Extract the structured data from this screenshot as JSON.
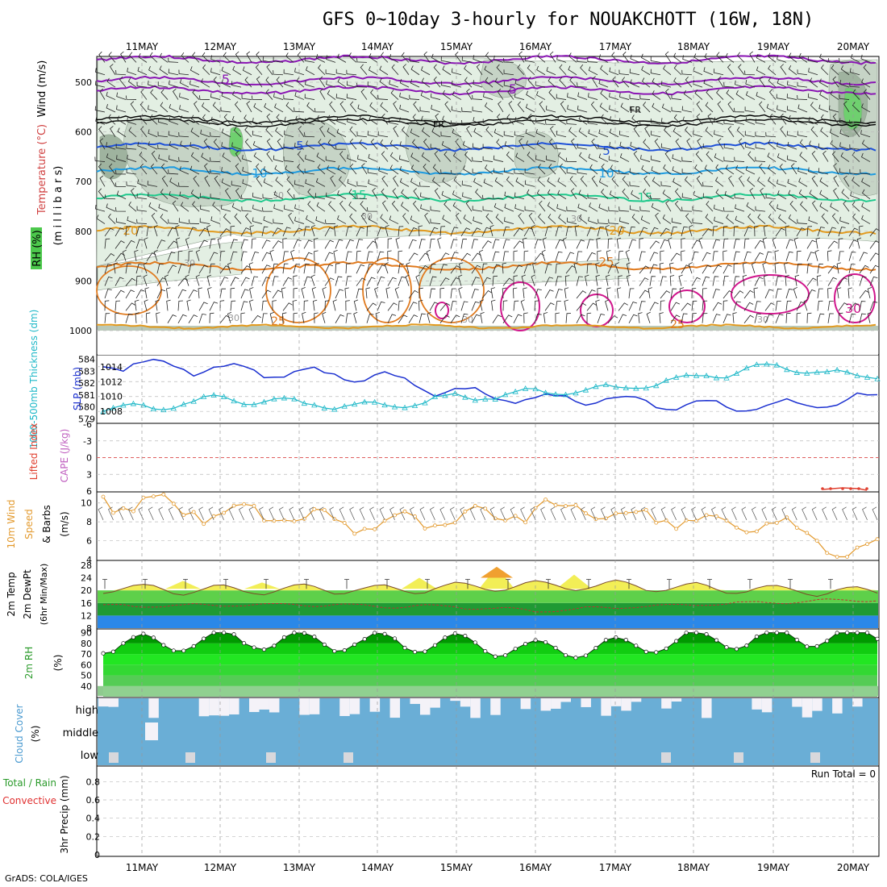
{
  "header": {
    "title": "GFS 0~10day 3-hourly for NOUAKCHOTT (16W, 18N)",
    "credit": "GrADS: COLA/IGES"
  },
  "dates": [
    "11MAY",
    "12MAY",
    "13MAY",
    "14MAY",
    "15MAY",
    "16MAY",
    "17MAY",
    "18MAY",
    "19MAY",
    "20MAY"
  ],
  "colors": {
    "slp": "#1a2fd0",
    "thick": "#1fb8c8",
    "wind10": "#e39a2e",
    "rh": "#22cc22",
    "purple": "#8a16b4",
    "blue5": "#1e50d8",
    "cyan10": "#1e9be0",
    "green15": "#1ec98c",
    "orange20": "#e29a1e",
    "orange25": "#e07a1e",
    "magenta30": "#d0168c",
    "lifted": "#e04030"
  },
  "panels": {
    "upper_air": {
      "labels": {
        "wind": "Wind (m/s)",
        "temp": "Temperature (°C)",
        "rh": "RH (%)",
        "unit": "(m i l l i b a r s)"
      },
      "yticks": [
        "500",
        "600",
        "700",
        "800",
        "900",
        "1000"
      ],
      "contour_labels": {
        "c5": "5",
        "c10": "10",
        "c15": "15",
        "c20": "20",
        "c25": "25",
        "c30": "30",
        "fr": "FR",
        "rh30": "30"
      }
    },
    "slp": {
      "labels": {
        "thick": "1000-500mb Thickness (dm)",
        "slp": "SLP (mb)"
      },
      "left_ticks": [
        "584",
        "583",
        "582",
        "581",
        "580",
        "579"
      ],
      "right_ticks": [
        "1014",
        "1012",
        "1010",
        "1008"
      ]
    },
    "cape": {
      "labels": {
        "li": "Lifted Index",
        "cape": "CAPE (J/kg)"
      },
      "ticks": [
        "-6",
        "-3",
        "0",
        "3",
        "6"
      ]
    },
    "wind10": {
      "labels": {
        "a": "10m Wind",
        "b": "Speed",
        "c": "& Barbs",
        "unit": "(m/s)"
      },
      "ticks": [
        "10",
        "8",
        "6",
        "4"
      ]
    },
    "temp2m": {
      "labels": {
        "a": "2m Temp",
        "b": "2m DewPt",
        "c": "(6hr Min/Max)"
      },
      "ticks": [
        "28",
        "24",
        "20",
        "16",
        "12",
        "8"
      ]
    },
    "rh2m": {
      "labels": {
        "a": "2m RH",
        "unit": "(%)"
      },
      "ticks": [
        "90",
        "80",
        "70",
        "60",
        "50",
        "40"
      ]
    },
    "cloud": {
      "labels": {
        "a": "Cloud Cover",
        "unit": "(%)"
      },
      "levels": [
        "high",
        "middle",
        "low"
      ]
    },
    "precip": {
      "labels": {
        "a": "Total / Rain",
        "b": "Convective",
        "c": "3hr Precip (mm)",
        "total": "Run Total = 0"
      },
      "ticks": [
        "0.8",
        "0.6",
        "0.4",
        "0.2",
        "0"
      ]
    }
  },
  "chart_data": [
    {
      "type": "line",
      "title": "SLP (mb)",
      "x": [
        "11MAY",
        "12MAY",
        "13MAY",
        "14MAY",
        "15MAY",
        "16MAY",
        "17MAY",
        "18MAY",
        "19MAY",
        "20MAY"
      ],
      "values": [
        1014.3,
        1013.6,
        1013.2,
        1012.6,
        1010.4,
        1009.7,
        1009.6,
        1008.8,
        1008.5,
        1009.6
      ],
      "ylim": [
        1006.5,
        1015.5
      ]
    },
    {
      "type": "line",
      "title": "1000-500mb Thickness (dm)",
      "x": [
        "11MAY",
        "12MAY",
        "13MAY",
        "14MAY",
        "15MAY",
        "16MAY",
        "17MAY",
        "18MAY",
        "19MAY",
        "20MAY"
      ],
      "values": [
        579.9,
        580.7,
        580.3,
        580.0,
        580.8,
        581.2,
        581.5,
        582.5,
        583.4,
        582.6
      ],
      "ylim": [
        578.7,
        584.3
      ]
    },
    {
      "type": "line",
      "title": "10m Wind Speed (m/s)",
      "x": [
        "11MAY",
        "12MAY",
        "13MAY",
        "14MAY",
        "15MAY",
        "16MAY",
        "17MAY",
        "18MAY",
        "19MAY",
        "20MAY"
      ],
      "values": [
        10.2,
        8.8,
        8.5,
        8.0,
        8.2,
        9.4,
        8.9,
        8.1,
        7.8,
        4.8
      ],
      "ylim": [
        4,
        11
      ]
    },
    {
      "type": "line",
      "title": "2m Temp (C)",
      "x": [
        "11MAY",
        "12MAY",
        "13MAY",
        "14MAY",
        "15MAY",
        "16MAY",
        "17MAY",
        "18MAY",
        "19MAY",
        "20MAY"
      ],
      "values": [
        20.5,
        20.0,
        20.5,
        20.2,
        21.0,
        21.5,
        21.5,
        20.8,
        20.2,
        19.5
      ],
      "ylim": [
        8,
        28
      ]
    },
    {
      "type": "line",
      "title": "2m DewPt (C)",
      "x": [
        "11MAY",
        "12MAY",
        "13MAY",
        "14MAY",
        "15MAY",
        "16MAY",
        "17MAY",
        "18MAY",
        "19MAY",
        "20MAY"
      ],
      "values": [
        15.0,
        15.4,
        15.5,
        15.0,
        14.8,
        13.5,
        14.6,
        15.5,
        16.2,
        17.0
      ],
      "ylim": [
        8,
        28
      ]
    },
    {
      "type": "area",
      "title": "2m RH (%)",
      "x": [
        "11MAY",
        "12MAY",
        "13MAY",
        "14MAY",
        "15MAY",
        "16MAY",
        "17MAY",
        "18MAY",
        "19MAY",
        "20MAY"
      ],
      "values": [
        79,
        84,
        82,
        81,
        80,
        74,
        77,
        83,
        84,
        87
      ],
      "ylim": [
        30,
        92
      ]
    },
    {
      "type": "bar",
      "title": "3hr Precip (mm)",
      "x": [
        "11MAY",
        "12MAY",
        "13MAY",
        "14MAY",
        "15MAY",
        "16MAY",
        "17MAY",
        "18MAY",
        "19MAY",
        "20MAY"
      ],
      "values": [
        0,
        0,
        0,
        0,
        0,
        0,
        0,
        0,
        0,
        0
      ],
      "ylim": [
        0,
        0.9
      ]
    }
  ]
}
